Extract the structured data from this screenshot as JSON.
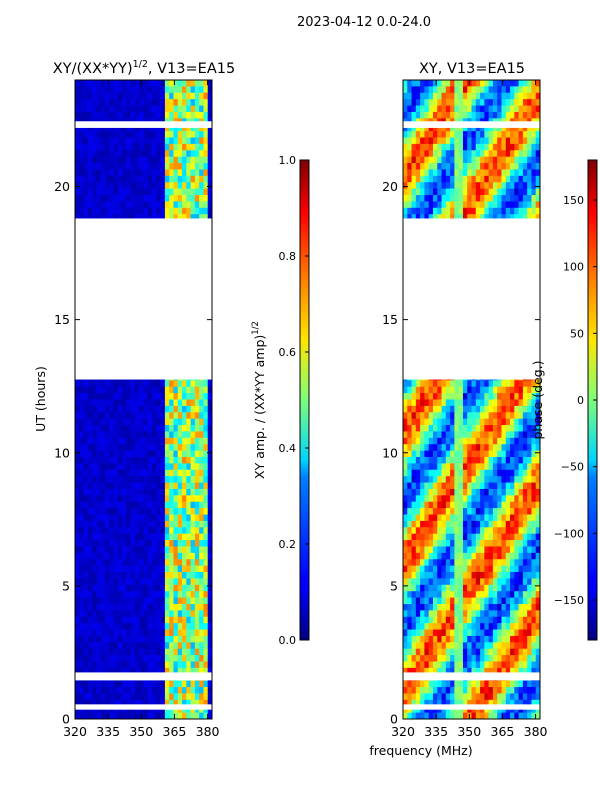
{
  "figure": {
    "suptitle": "2023-04-12 0.0-24.0",
    "shared_xlabel": "frequency (MHz)",
    "colors": {
      "background": "#ffffff",
      "axes": "#000000",
      "gap": "#ffffff"
    }
  },
  "chart_data": [
    {
      "type": "heatmap",
      "title_main": "XY/(XX*YY)",
      "title_exp": "1/2",
      "title_tail": ", V13=EA15",
      "xlabel": "",
      "ylabel": "UT (hours)",
      "xlim": [
        320,
        382
      ],
      "ylim": [
        0,
        24
      ],
      "xticks": [
        320,
        335,
        350,
        365,
        380
      ],
      "yticks": [
        0,
        5,
        10,
        15,
        20
      ],
      "colormap": "jet",
      "value_description": "normalized XY amplitude, low (~0.05) below 360 MHz and 0.3-0.8 between 360 and 380 MHz",
      "data_gaps_hours": [
        [
          0.35,
          0.55
        ],
        [
          1.45,
          1.75
        ],
        [
          12.75,
          18.8
        ],
        [
          22.2,
          22.45
        ]
      ],
      "colorbar": {
        "label_main": "XY amp. / (XX*YY amp)",
        "label_exp": "1/2",
        "range": [
          0.0,
          1.0
        ],
        "ticks": [
          "0.0",
          "0.2",
          "0.4",
          "0.6",
          "0.8",
          "1.0"
        ]
      }
    },
    {
      "type": "heatmap",
      "title_main": "XY, V13=EA15",
      "xlabel": "",
      "ylabel": "",
      "xlim": [
        320,
        382
      ],
      "ylim": [
        0,
        24
      ],
      "xticks": [
        320,
        335,
        350,
        365,
        380
      ],
      "yticks": [
        0,
        5,
        10,
        15,
        20
      ],
      "colormap": "jet",
      "value_description": "XY phase in degrees, varying across full range with streaks near 345 MHz",
      "data_gaps_hours": [
        [
          0.35,
          0.55
        ],
        [
          1.45,
          1.75
        ],
        [
          12.75,
          18.8
        ],
        [
          22.2,
          22.45
        ]
      ],
      "colorbar": {
        "label": "phase (deg.)",
        "range": [
          -180,
          180
        ],
        "ticks": [
          "−150",
          "−100",
          "−50",
          "0",
          "50",
          "100",
          "150"
        ]
      }
    }
  ]
}
